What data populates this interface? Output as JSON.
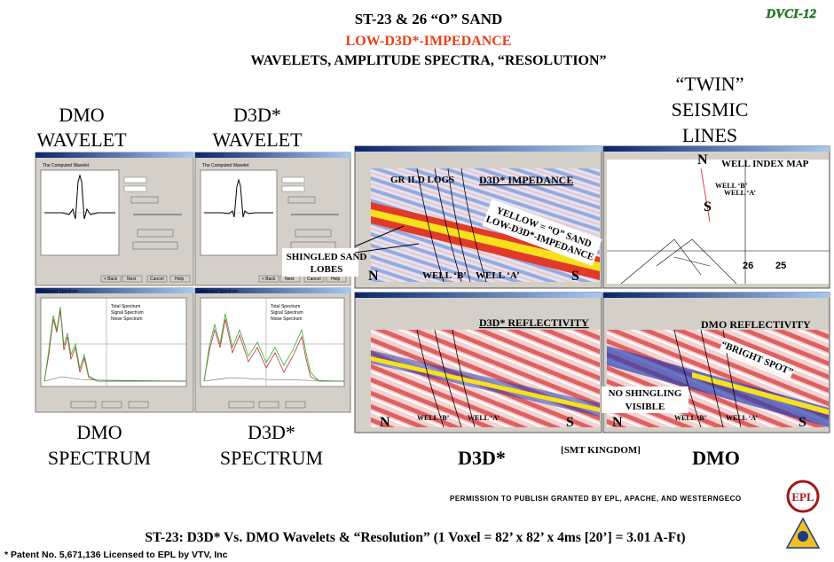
{
  "slide": {
    "code": "DVCI-12",
    "title": "ST-23 & 26 “O” SAND",
    "subtitle": "LOW-D3D*-IMPEDANCE",
    "subtitle2": "WAVELETS, AMPLITUDE SPECTRA, “RESOLUTION”",
    "headings": {
      "dmo_wavelet": [
        "DMO",
        "WAVELET"
      ],
      "d3d_wavelet": [
        "D3D*",
        "WAVELET"
      ],
      "twin_lines": [
        "“TWIN”",
        "SEISMIC",
        "LINES"
      ],
      "dmo_spectrum": [
        "DMO",
        "SPECTRUM"
      ],
      "d3d_spectrum": [
        "D3D*",
        "SPECTRUM"
      ],
      "d3d_bottom": "D3D*",
      "dmo_bottom": "DMO",
      "software": "[SMT KINGDOM]"
    },
    "windows": {
      "wavelet_title": "The Computed Wavelet",
      "spectrum_title": "Computed Spectrum",
      "legend": [
        "Total Spectrum",
        "Signal Spectrum",
        "Noise Spectrum"
      ],
      "buttons": [
        "< Back",
        "Next",
        "Cancel",
        "Help"
      ]
    },
    "panels": {
      "impedance": "D3D* IMPEDANCE",
      "well_map": "WELL INDEX MAP",
      "d3d_reflectivity": "D3D* REFLECTIVITY",
      "dmo_reflectivity": "DMO REFLECTIVITY"
    },
    "annotations": {
      "logs": "GR  ILD LOGS",
      "shingled": [
        "SHINGLED SAND",
        "LOBES"
      ],
      "yellow": [
        "YELLOW = “O” SAND",
        "LOW-D3D*-IMPEDANCE"
      ],
      "bright_spot": "“BRIGHT SPOT”",
      "no_shingling": [
        "NO SHINGLING",
        "VISIBLE"
      ],
      "north": "N",
      "south": "S",
      "well_b": "WELL ‘B’",
      "well_a": "WELL ‘A’",
      "section_26": "26",
      "section_25": "25"
    },
    "permission": "PERMISSION TO PUBLISH GRANTED BY EPL, APACHE, AND WESTERNGECO",
    "caption": "ST-23:  D3D* Vs. DMO Wavelets & “Resolution” (1 Voxel = 82’ x 82’ x 4ms [20’] = 3.01 A-Ft)",
    "patent": "* Patent No. 5,671,136 Licensed to EPL by VTV, Inc",
    "logo": "EPL"
  }
}
